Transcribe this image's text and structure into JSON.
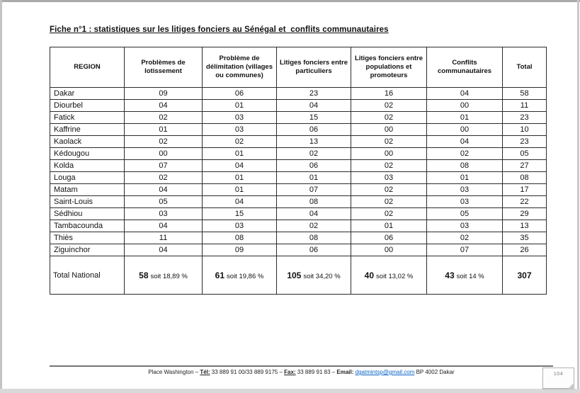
{
  "page": {
    "title": "Fiche n°1 : statistiques sur les litiges fonciers au Sénégal et  conflits communautaires"
  },
  "table": {
    "headers": [
      "REGION",
      "Problèmes de lotissement",
      "Problème de délimitation (villages ou communes)",
      "Litiges fonciers entre particuliers",
      "Litiges fonciers entre populations et promoteurs",
      "Conflits communautaires",
      "Total"
    ],
    "rows": [
      {
        "region": "Dakar",
        "values": [
          "09",
          "06",
          "23",
          "16",
          "04",
          "58"
        ]
      },
      {
        "region": "Diourbel",
        "values": [
          "04",
          "01",
          "04",
          "02",
          "00",
          "11"
        ]
      },
      {
        "region": "Fatick",
        "values": [
          "02",
          "03",
          "15",
          "02",
          "01",
          "23"
        ]
      },
      {
        "region": "Kaffrine",
        "values": [
          "01",
          "03",
          "06",
          "00",
          "00",
          "10"
        ]
      },
      {
        "region": "Kaolack",
        "values": [
          "02",
          "02",
          "13",
          "02",
          "04",
          "23"
        ]
      },
      {
        "region": "Kédougou",
        "values": [
          "00",
          "01",
          "02",
          "00",
          "02",
          "05"
        ]
      },
      {
        "region": "Kolda",
        "values": [
          "07",
          "04",
          "06",
          "02",
          "08",
          "27"
        ]
      },
      {
        "region": "Louga",
        "values": [
          "02",
          "01",
          "01",
          "03",
          "01",
          "08"
        ]
      },
      {
        "region": "Matam",
        "values": [
          "04",
          "01",
          "07",
          "02",
          "03",
          "17"
        ]
      },
      {
        "region": "Saint-Louis",
        "values": [
          "05",
          "04",
          "08",
          "02",
          "03",
          "22"
        ]
      },
      {
        "region": "Sédhiou",
        "values": [
          "03",
          "15",
          "04",
          "02",
          "05",
          "29"
        ]
      },
      {
        "region": "Tambacounda",
        "values": [
          "04",
          "03",
          "02",
          "01",
          "03",
          "13"
        ]
      },
      {
        "region": "Thiès",
        "values": [
          "11",
          "08",
          "08",
          "06",
          "02",
          "35"
        ]
      },
      {
        "region": "Ziguinchor",
        "values": [
          "04",
          "09",
          "06",
          "00",
          "07",
          "26"
        ]
      }
    ],
    "total_row": {
      "label": "Total National",
      "cells": [
        {
          "value": "58",
          "suffix": "soit 18,89 %"
        },
        {
          "value": "61",
          "suffix": "soit 19,86 %"
        },
        {
          "value": "105",
          "suffix": "soit 34,20 %"
        },
        {
          "value": "40",
          "suffix": "soit 13,02 %"
        },
        {
          "value": "43",
          "suffix": "soit 14 %"
        }
      ],
      "total": "307"
    }
  },
  "footer": {
    "address": "Place Washington – ",
    "tel_label": "Tél:",
    "tel_value": " 33 889 91 00/33 889 9175 – ",
    "fax_label": "Fax:",
    "fax_value": " 33 889 91 83 – ",
    "email_label": "Email:",
    "email_value": "dgatmintsp@gmail.com",
    "suffix": " BP 4002 Dakar"
  },
  "page_marker": {
    "text": "104"
  },
  "colors": {
    "link_blue": "#0b63c6",
    "border_dark": "#2b2b2b"
  }
}
